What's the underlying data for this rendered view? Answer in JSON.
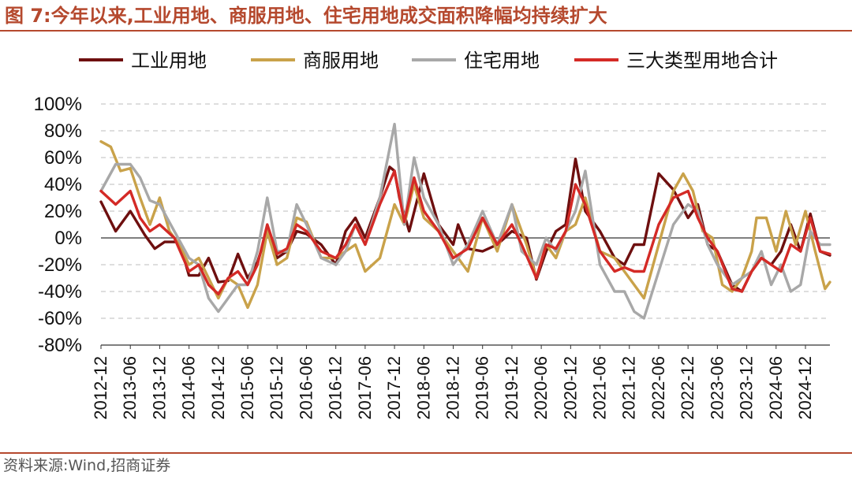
{
  "figure": {
    "title": "图 7:今年以来,工业用地、商服用地、住宅用地成交面积降幅均持续扩大",
    "source": "资料来源:Wind,招商证券"
  },
  "colors": {
    "accent": "#b5492e",
    "industrial": "#6e0f0f",
    "commercial": "#c9a24a",
    "residential": "#a8a8a8",
    "total": "#d42a26"
  },
  "chart_data": {
    "type": "line",
    "x_start": "2012-12",
    "x_end": "2025-05",
    "x_ticks": [
      "2012-12",
      "2013-06",
      "2013-12",
      "2014-06",
      "2014-12",
      "2015-06",
      "2015-12",
      "2016-06",
      "2016-12",
      "2017-06",
      "2017-12",
      "2018-06",
      "2018-12",
      "2019-06",
      "2019-12",
      "2020-06",
      "2020-12",
      "2021-06",
      "2021-12",
      "2022-06",
      "2022-12",
      "2023-06",
      "2023-12",
      "2024-06",
      "2024-12"
    ],
    "y_ticks": [
      -80,
      -60,
      -40,
      -20,
      0,
      20,
      40,
      60,
      80,
      100
    ],
    "y_tick_labels": [
      "-80%",
      "-60%",
      "-40%",
      "-20%",
      "0%",
      "20%",
      "40%",
      "60%",
      "80%",
      "100%"
    ],
    "ylim": [
      -80,
      100
    ],
    "grid": "horizontal dashed",
    "legend_position": "top",
    "series": [
      {
        "name": "工业用地",
        "key": "industrial",
        "points": [
          [
            "2012-12",
            27
          ],
          [
            "2013-03",
            5
          ],
          [
            "2013-06",
            20
          ],
          [
            "2013-09",
            2
          ],
          [
            "2013-11",
            -8
          ],
          [
            "2014-01",
            -3
          ],
          [
            "2014-04",
            -3
          ],
          [
            "2014-06",
            -28
          ],
          [
            "2014-08",
            -28
          ],
          [
            "2014-10",
            -15
          ],
          [
            "2014-12",
            -33
          ],
          [
            "2015-02",
            -32
          ],
          [
            "2015-04",
            -12
          ],
          [
            "2015-06",
            -30
          ],
          [
            "2015-08",
            -18
          ],
          [
            "2015-10",
            5
          ],
          [
            "2015-12",
            -15
          ],
          [
            "2016-02",
            -10
          ],
          [
            "2016-04",
            5
          ],
          [
            "2016-06",
            3
          ],
          [
            "2016-09",
            -5
          ],
          [
            "2016-12",
            -20
          ],
          [
            "2017-02",
            5
          ],
          [
            "2017-04",
            15
          ],
          [
            "2017-06",
            0
          ],
          [
            "2017-09",
            30
          ],
          [
            "2017-11",
            53
          ],
          [
            "2017-12",
            50
          ],
          [
            "2018-01",
            30
          ],
          [
            "2018-03",
            5
          ],
          [
            "2018-06",
            48
          ],
          [
            "2018-09",
            10
          ],
          [
            "2018-12",
            -5
          ],
          [
            "2019-01",
            10
          ],
          [
            "2019-03",
            -8
          ],
          [
            "2019-06",
            -10
          ],
          [
            "2019-09",
            -5
          ],
          [
            "2019-12",
            5
          ],
          [
            "2020-03",
            0
          ],
          [
            "2020-05",
            -31
          ],
          [
            "2020-07",
            -10
          ],
          [
            "2020-09",
            5
          ],
          [
            "2020-11",
            10
          ],
          [
            "2021-01",
            59
          ],
          [
            "2021-03",
            20
          ],
          [
            "2021-06",
            5
          ],
          [
            "2021-09",
            -15
          ],
          [
            "2021-11",
            -20
          ],
          [
            "2022-01",
            -5
          ],
          [
            "2022-03",
            -5
          ],
          [
            "2022-06",
            48
          ],
          [
            "2022-09",
            36
          ],
          [
            "2022-12",
            15
          ],
          [
            "2023-02",
            25
          ],
          [
            "2023-04",
            -5
          ],
          [
            "2023-06",
            -10
          ],
          [
            "2023-09",
            -35
          ],
          [
            "2023-11",
            -40
          ],
          [
            "2024-01",
            -25
          ],
          [
            "2024-03",
            -15
          ],
          [
            "2024-05",
            -20
          ],
          [
            "2024-07",
            -10
          ],
          [
            "2024-09",
            10
          ],
          [
            "2024-11",
            -10
          ],
          [
            "2025-01",
            18
          ],
          [
            "2025-03",
            -10
          ],
          [
            "2025-05",
            -13
          ]
        ]
      },
      {
        "name": "商服用地",
        "key": "commercial",
        "points": [
          [
            "2012-12",
            72
          ],
          [
            "2013-02",
            68
          ],
          [
            "2013-04",
            50
          ],
          [
            "2013-06",
            52
          ],
          [
            "2013-08",
            30
          ],
          [
            "2013-10",
            10
          ],
          [
            "2013-12",
            30
          ],
          [
            "2014-02",
            5
          ],
          [
            "2014-04",
            -5
          ],
          [
            "2014-06",
            -20
          ],
          [
            "2014-08",
            -15
          ],
          [
            "2014-10",
            -30
          ],
          [
            "2014-12",
            -45
          ],
          [
            "2015-02",
            -30
          ],
          [
            "2015-04",
            -35
          ],
          [
            "2015-06",
            -52
          ],
          [
            "2015-08",
            -35
          ],
          [
            "2015-10",
            5
          ],
          [
            "2015-12",
            -20
          ],
          [
            "2016-02",
            -15
          ],
          [
            "2016-04",
            15
          ],
          [
            "2016-06",
            12
          ],
          [
            "2016-09",
            -15
          ],
          [
            "2016-12",
            -15
          ],
          [
            "2017-02",
            -10
          ],
          [
            "2017-04",
            -5
          ],
          [
            "2017-06",
            -25
          ],
          [
            "2017-09",
            -15
          ],
          [
            "2017-12",
            25
          ],
          [
            "2018-02",
            10
          ],
          [
            "2018-04",
            40
          ],
          [
            "2018-06",
            15
          ],
          [
            "2018-09",
            5
          ],
          [
            "2018-12",
            -10
          ],
          [
            "2019-03",
            -25
          ],
          [
            "2019-06",
            15
          ],
          [
            "2019-09",
            -10
          ],
          [
            "2019-12",
            25
          ],
          [
            "2020-03",
            -5
          ],
          [
            "2020-05",
            -30
          ],
          [
            "2020-07",
            -5
          ],
          [
            "2020-09",
            -15
          ],
          [
            "2020-11",
            5
          ],
          [
            "2021-01",
            10
          ],
          [
            "2021-03",
            30
          ],
          [
            "2021-06",
            -10
          ],
          [
            "2021-09",
            -15
          ],
          [
            "2021-11",
            -25
          ],
          [
            "2022-01",
            -35
          ],
          [
            "2022-03",
            -45
          ],
          [
            "2022-06",
            -5
          ],
          [
            "2022-09",
            35
          ],
          [
            "2022-11",
            48
          ],
          [
            "2023-01",
            35
          ],
          [
            "2023-03",
            5
          ],
          [
            "2023-05",
            0
          ],
          [
            "2023-07",
            -35
          ],
          [
            "2023-09",
            -40
          ],
          [
            "2023-11",
            -30
          ],
          [
            "2024-01",
            -10
          ],
          [
            "2024-02",
            15
          ],
          [
            "2024-04",
            15
          ],
          [
            "2024-06",
            -10
          ],
          [
            "2024-08",
            20
          ],
          [
            "2024-10",
            -5
          ],
          [
            "2024-12",
            20
          ],
          [
            "2025-02",
            -10
          ],
          [
            "2025-04",
            -38
          ],
          [
            "2025-05",
            -33
          ]
        ]
      },
      {
        "name": "住宅用地",
        "key": "residential",
        "points": [
          [
            "2012-12",
            35
          ],
          [
            "2013-03",
            55
          ],
          [
            "2013-06",
            55
          ],
          [
            "2013-08",
            45
          ],
          [
            "2013-10",
            28
          ],
          [
            "2013-12",
            25
          ],
          [
            "2014-03",
            5
          ],
          [
            "2014-06",
            -15
          ],
          [
            "2014-08",
            -20
          ],
          [
            "2014-10",
            -45
          ],
          [
            "2014-12",
            -55
          ],
          [
            "2015-02",
            -45
          ],
          [
            "2015-04",
            -35
          ],
          [
            "2015-06",
            -35
          ],
          [
            "2015-08",
            -10
          ],
          [
            "2015-10",
            30
          ],
          [
            "2015-12",
            -10
          ],
          [
            "2016-02",
            -10
          ],
          [
            "2016-04",
            25
          ],
          [
            "2016-06",
            10
          ],
          [
            "2016-09",
            -15
          ],
          [
            "2016-12",
            -20
          ],
          [
            "2017-02",
            -10
          ],
          [
            "2017-04",
            10
          ],
          [
            "2017-06",
            -5
          ],
          [
            "2017-09",
            30
          ],
          [
            "2017-12",
            85
          ],
          [
            "2018-02",
            10
          ],
          [
            "2018-04",
            60
          ],
          [
            "2018-06",
            30
          ],
          [
            "2018-09",
            10
          ],
          [
            "2018-12",
            -20
          ],
          [
            "2019-03",
            -5
          ],
          [
            "2019-06",
            20
          ],
          [
            "2019-09",
            -5
          ],
          [
            "2019-12",
            25
          ],
          [
            "2020-02",
            -10
          ],
          [
            "2020-05",
            -20
          ],
          [
            "2020-07",
            0
          ],
          [
            "2020-09",
            -10
          ],
          [
            "2020-11",
            5
          ],
          [
            "2021-01",
            20
          ],
          [
            "2021-03",
            50
          ],
          [
            "2021-06",
            -20
          ],
          [
            "2021-09",
            -40
          ],
          [
            "2021-11",
            -40
          ],
          [
            "2022-01",
            -55
          ],
          [
            "2022-03",
            -60
          ],
          [
            "2022-06",
            -25
          ],
          [
            "2022-09",
            10
          ],
          [
            "2022-12",
            25
          ],
          [
            "2023-02",
            20
          ],
          [
            "2023-04",
            -5
          ],
          [
            "2023-06",
            -20
          ],
          [
            "2023-09",
            -35
          ],
          [
            "2023-11",
            -30
          ],
          [
            "2024-01",
            -25
          ],
          [
            "2024-03",
            -10
          ],
          [
            "2024-05",
            -35
          ],
          [
            "2024-07",
            -20
          ],
          [
            "2024-09",
            -40
          ],
          [
            "2024-11",
            -35
          ],
          [
            "2025-01",
            5
          ],
          [
            "2025-03",
            -5
          ],
          [
            "2025-05",
            -5
          ]
        ]
      },
      {
        "name": "三大类型用地合计",
        "key": "total",
        "points": [
          [
            "2012-12",
            35
          ],
          [
            "2013-03",
            25
          ],
          [
            "2013-06",
            35
          ],
          [
            "2013-08",
            15
          ],
          [
            "2013-10",
            5
          ],
          [
            "2013-12",
            10
          ],
          [
            "2014-03",
            0
          ],
          [
            "2014-06",
            -25
          ],
          [
            "2014-08",
            -20
          ],
          [
            "2014-10",
            -35
          ],
          [
            "2014-12",
            -42
          ],
          [
            "2015-02",
            -30
          ],
          [
            "2015-04",
            -25
          ],
          [
            "2015-06",
            -35
          ],
          [
            "2015-08",
            -20
          ],
          [
            "2015-10",
            10
          ],
          [
            "2015-12",
            -12
          ],
          [
            "2016-02",
            -8
          ],
          [
            "2016-04",
            10
          ],
          [
            "2016-06",
            5
          ],
          [
            "2016-09",
            -10
          ],
          [
            "2016-12",
            -15
          ],
          [
            "2017-02",
            -5
          ],
          [
            "2017-04",
            10
          ],
          [
            "2017-06",
            -5
          ],
          [
            "2017-09",
            25
          ],
          [
            "2017-12",
            50
          ],
          [
            "2018-02",
            12
          ],
          [
            "2018-04",
            45
          ],
          [
            "2018-06",
            20
          ],
          [
            "2018-09",
            5
          ],
          [
            "2018-12",
            -15
          ],
          [
            "2019-03",
            -8
          ],
          [
            "2019-06",
            15
          ],
          [
            "2019-09",
            -5
          ],
          [
            "2019-12",
            10
          ],
          [
            "2020-02",
            -5
          ],
          [
            "2020-05",
            -30
          ],
          [
            "2020-07",
            -5
          ],
          [
            "2020-09",
            -8
          ],
          [
            "2020-11",
            5
          ],
          [
            "2021-01",
            40
          ],
          [
            "2021-03",
            25
          ],
          [
            "2021-06",
            -10
          ],
          [
            "2021-09",
            -25
          ],
          [
            "2021-11",
            -22
          ],
          [
            "2022-01",
            -25
          ],
          [
            "2022-03",
            -25
          ],
          [
            "2022-06",
            10
          ],
          [
            "2022-09",
            30
          ],
          [
            "2022-12",
            35
          ],
          [
            "2023-02",
            15
          ],
          [
            "2023-04",
            0
          ],
          [
            "2023-06",
            -10
          ],
          [
            "2023-09",
            -38
          ],
          [
            "2023-11",
            -40
          ],
          [
            "2024-01",
            -25
          ],
          [
            "2024-03",
            -15
          ],
          [
            "2024-05",
            -20
          ],
          [
            "2024-07",
            -25
          ],
          [
            "2024-09",
            -5
          ],
          [
            "2024-11",
            -10
          ],
          [
            "2025-01",
            15
          ],
          [
            "2025-03",
            -10
          ],
          [
            "2025-05",
            -12
          ]
        ]
      }
    ]
  }
}
